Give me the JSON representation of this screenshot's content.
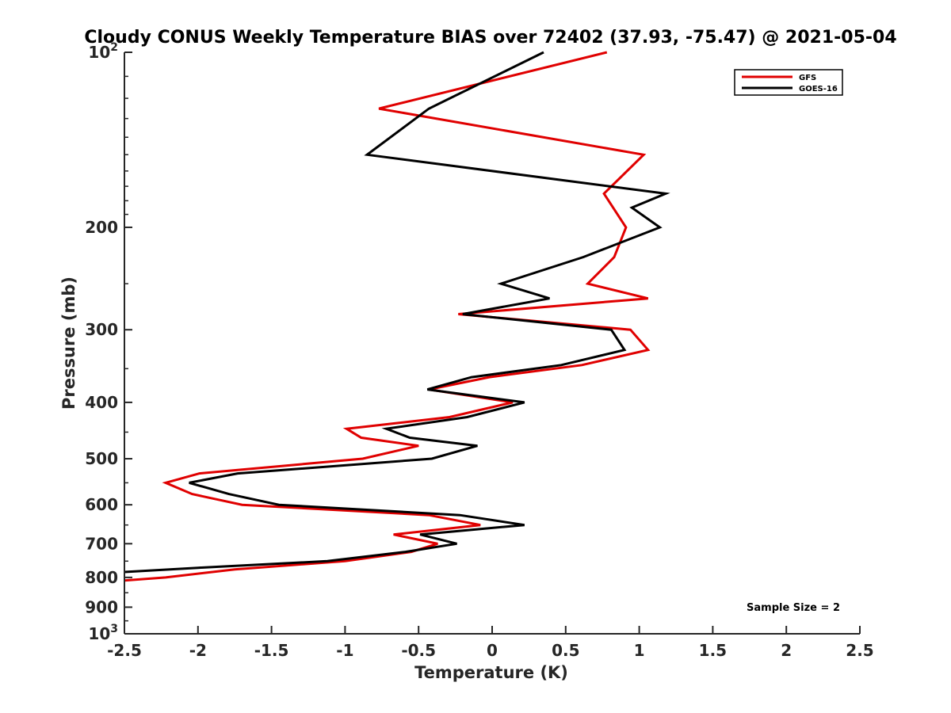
{
  "chart_data": {
    "type": "line",
    "title": "Cloudy CONUS Weekly Temperature BIAS over 72402 (37.93, -75.47) @ 2021-05-04",
    "xlabel": "Temperature (K)",
    "ylabel": "Pressure (mb)",
    "xlim": [
      -2.5,
      2.5
    ],
    "ylim": [
      100,
      1000
    ],
    "y_scale": "log",
    "y_reversed": true,
    "x_ticks": [
      "-2.5",
      "-2",
      "-1.5",
      "-1",
      "-0.5",
      "0",
      "0.5",
      "1",
      "1.5",
      "2",
      "2.5"
    ],
    "x_tick_values": [
      -2.5,
      -2,
      -1.5,
      -1,
      -0.5,
      0,
      0.5,
      1,
      1.5,
      2,
      2.5
    ],
    "y_ticks": [
      {
        "value": 100,
        "base": "10",
        "exp": "2"
      },
      {
        "value": 200,
        "label": "200"
      },
      {
        "value": 300,
        "label": "300"
      },
      {
        "value": 400,
        "label": "400"
      },
      {
        "value": 500,
        "label": "500"
      },
      {
        "value": 600,
        "label": "600"
      },
      {
        "value": 700,
        "label": "700"
      },
      {
        "value": 800,
        "label": "800"
      },
      {
        "value": 900,
        "label": "900"
      },
      {
        "value": 1000,
        "base": "10",
        "exp": "3"
      }
    ],
    "grid": false,
    "legend_position": "top-right",
    "annotation": "Sample Size = 2",
    "series": [
      {
        "name": "GFS",
        "color": "#e00000",
        "points": [
          [
            0.78,
            100
          ],
          [
            -0.77,
            125
          ],
          [
            1.03,
            150
          ],
          [
            0.76,
            175
          ],
          [
            0.91,
            200
          ],
          [
            0.83,
            225
          ],
          [
            0.65,
            250
          ],
          [
            1.06,
            265
          ],
          [
            -0.23,
            282
          ],
          [
            0.94,
            300
          ],
          [
            1.06,
            325
          ],
          [
            0.61,
            345
          ],
          [
            -0.02,
            362
          ],
          [
            -0.43,
            380
          ],
          [
            0.14,
            400
          ],
          [
            -0.29,
            424
          ],
          [
            -0.99,
            444
          ],
          [
            -0.89,
            460
          ],
          [
            -0.5,
            475
          ],
          [
            -0.88,
            500
          ],
          [
            -1.99,
            530
          ],
          [
            -2.22,
            550
          ],
          [
            -2.04,
            575
          ],
          [
            -1.7,
            600
          ],
          [
            -0.43,
            625
          ],
          [
            -0.08,
            650
          ],
          [
            -0.67,
            675
          ],
          [
            -0.37,
            700
          ],
          [
            -0.55,
            723
          ],
          [
            -1.0,
            750
          ],
          [
            -1.75,
            775
          ],
          [
            -2.22,
            800
          ],
          [
            -2.5,
            810
          ]
        ]
      },
      {
        "name": "GOES-16",
        "color": "#000000",
        "points": [
          [
            0.35,
            100
          ],
          [
            -0.43,
            125
          ],
          [
            -0.85,
            150
          ],
          [
            1.18,
            175
          ],
          [
            0.95,
            185
          ],
          [
            1.14,
            200
          ],
          [
            0.62,
            225
          ],
          [
            0.06,
            250
          ],
          [
            0.39,
            265
          ],
          [
            -0.2,
            282
          ],
          [
            0.81,
            300
          ],
          [
            0.9,
            325
          ],
          [
            0.47,
            345
          ],
          [
            -0.14,
            362
          ],
          [
            -0.44,
            380
          ],
          [
            0.22,
            400
          ],
          [
            -0.17,
            424
          ],
          [
            -0.72,
            444
          ],
          [
            -0.56,
            460
          ],
          [
            -0.1,
            475
          ],
          [
            -0.41,
            500
          ],
          [
            -1.73,
            530
          ],
          [
            -2.06,
            550
          ],
          [
            -1.79,
            575
          ],
          [
            -1.45,
            600
          ],
          [
            -0.22,
            625
          ],
          [
            0.22,
            650
          ],
          [
            -0.49,
            675
          ],
          [
            -0.24,
            700
          ],
          [
            -0.59,
            723
          ],
          [
            -1.12,
            750
          ],
          [
            -2.0,
            770
          ],
          [
            -2.5,
            783
          ]
        ]
      }
    ]
  }
}
